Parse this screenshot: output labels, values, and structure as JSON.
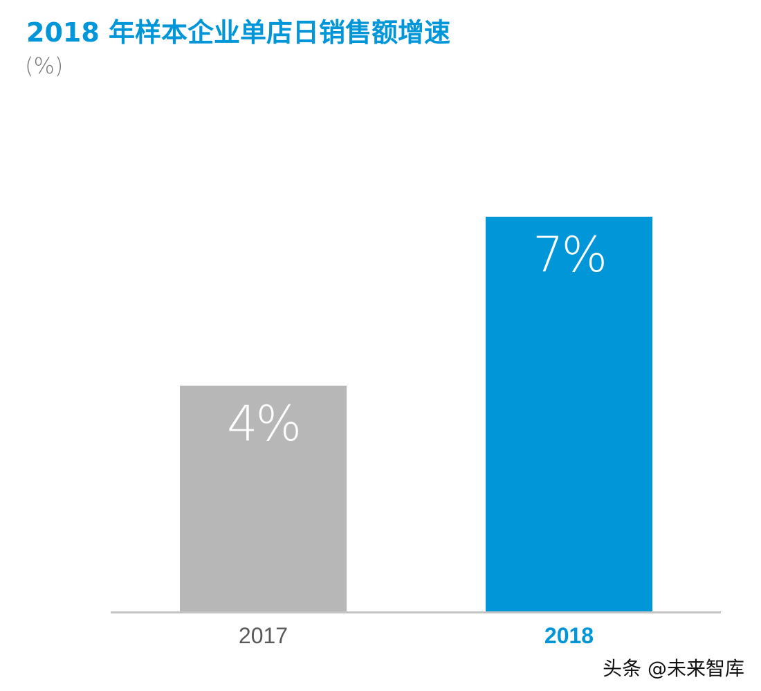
{
  "chart_data": {
    "type": "bar",
    "title": "2018 年样本企业单店日销售额增速",
    "subtitle": "(%)",
    "categories": [
      "2017",
      "2018"
    ],
    "values": [
      4,
      7
    ],
    "data_labels": [
      "4%",
      "7%"
    ],
    "colors": [
      "#b6b7b6",
      "#0096d8"
    ],
    "category_label_colors": [
      "#595959",
      "#0096d8"
    ],
    "xlabel": "",
    "ylabel": "",
    "ylim": [
      0,
      10
    ],
    "grid": false
  },
  "watermark": "头条 @未来智库"
}
